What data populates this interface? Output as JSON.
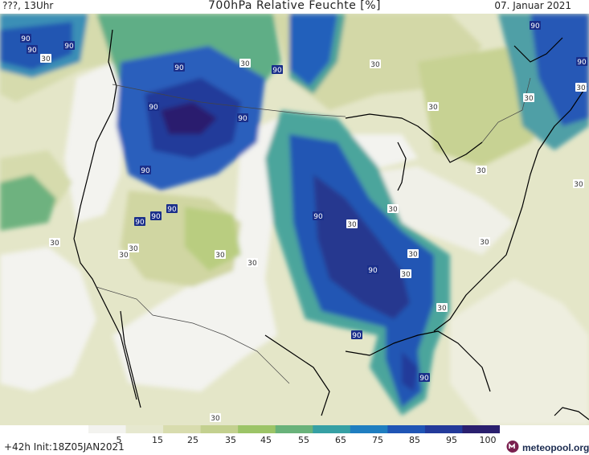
{
  "header": {
    "left_text": "???, 13Uhr",
    "title": "700hPa Relative Feuchte [%]",
    "date": "07. Januar 2021"
  },
  "footer": {
    "run_info": "+42h Init:18Z05JAN2021",
    "brand": "meteopool.org"
  },
  "colorbar": {
    "ticks": [
      "5",
      "15",
      "25",
      "35",
      "45",
      "55",
      "65",
      "75",
      "85",
      "95",
      "100"
    ],
    "colors": [
      "#f3f3ef",
      "#e6e8cf",
      "#d8dcae",
      "#c3d08f",
      "#9cc467",
      "#69b27a",
      "#36a0a4",
      "#1f7ec0",
      "#1f55b5",
      "#233a9a",
      "#2a1f6e"
    ]
  },
  "map_labels": [
    {
      "text": "90"
    },
    {
      "text": "90"
    },
    {
      "text": "90"
    },
    {
      "text": "30"
    },
    {
      "text": "90"
    },
    {
      "text": "90"
    },
    {
      "text": "30"
    },
    {
      "text": "30"
    },
    {
      "text": "90"
    },
    {
      "text": "90"
    },
    {
      "text": "30"
    },
    {
      "text": "90"
    },
    {
      "text": "90"
    },
    {
      "text": "30"
    },
    {
      "text": "30"
    },
    {
      "text": "90"
    },
    {
      "text": "90"
    },
    {
      "text": "90"
    },
    {
      "text": "30"
    },
    {
      "text": "30"
    },
    {
      "text": "90"
    },
    {
      "text": "90"
    },
    {
      "text": "30"
    },
    {
      "text": "30"
    },
    {
      "text": "30"
    },
    {
      "text": "30"
    },
    {
      "text": "30"
    },
    {
      "text": "30"
    },
    {
      "text": "30"
    },
    {
      "text": "90"
    },
    {
      "text": "30"
    },
    {
      "text": "30"
    },
    {
      "text": "30"
    },
    {
      "text": "30"
    },
    {
      "text": "90"
    },
    {
      "text": "90"
    },
    {
      "text": "30"
    }
  ]
}
